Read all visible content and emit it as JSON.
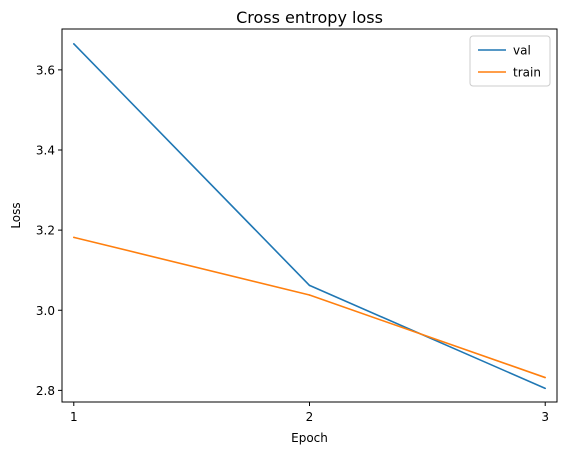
{
  "chart_data": {
    "type": "line",
    "title": "Cross entropy loss",
    "xlabel": "Epoch",
    "ylabel": "Loss",
    "x": [
      1,
      2,
      3
    ],
    "xlim": [
      0.95,
      3.05
    ],
    "ylim": [
      2.771,
      3.702
    ],
    "xticks": [
      1,
      2,
      3
    ],
    "yticks": [
      2.8,
      3.0,
      3.2,
      3.4,
      3.6
    ],
    "ytick_labels": [
      "2.8",
      "3.0",
      "3.2",
      "3.4",
      "3.6"
    ],
    "xtick_labels": [
      "1",
      "2",
      "3"
    ],
    "grid": false,
    "legend_position": "top-right",
    "series": [
      {
        "name": "val",
        "color": "#1f77b4",
        "values": [
          3.665,
          3.062,
          2.805
        ]
      },
      {
        "name": "train",
        "color": "#ff7f0e",
        "values": [
          3.182,
          3.038,
          2.832
        ]
      }
    ]
  }
}
